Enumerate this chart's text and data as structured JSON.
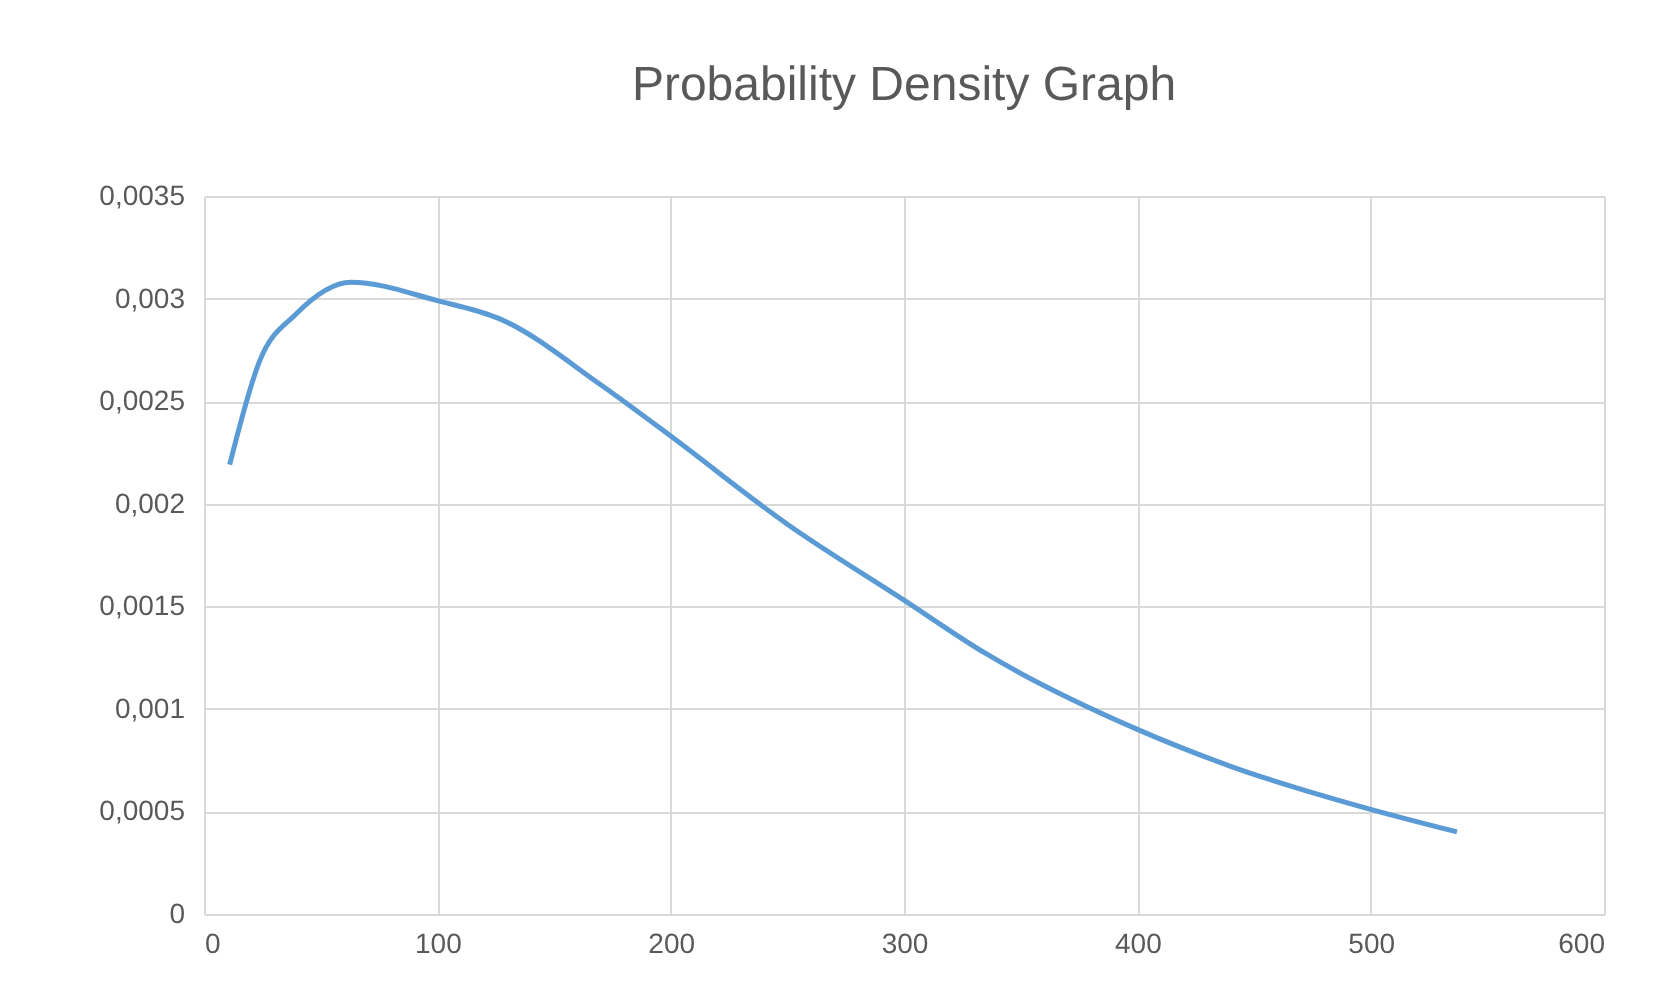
{
  "chart_data": {
    "type": "line",
    "title": "Probability Density Graph",
    "x": [
      11,
      24,
      39,
      63,
      100,
      127,
      170,
      200,
      250,
      300,
      335,
      400,
      440,
      500,
      537
    ],
    "series": [
      {
        "color": "#5b9bd5",
        "values": [
          0.00219,
          0.0027,
          0.00292,
          0.00308,
          0.00299,
          0.0029,
          0.00258,
          0.00233,
          0.0019,
          0.00153,
          0.00127,
          0.0009,
          0.00072,
          0.00051,
          0.0004
        ]
      }
    ],
    "xlim": [
      0,
      600
    ],
    "xticks": [
      0,
      100,
      200,
      300,
      400,
      500,
      600
    ],
    "ylim": [
      0,
      0.0035
    ],
    "yticks": [
      {
        "value": 0,
        "label": "0"
      },
      {
        "value": 0.0005,
        "label": "0,0005"
      },
      {
        "value": 0.001,
        "label": "0,001"
      },
      {
        "value": 0.0015,
        "label": "0,0015"
      },
      {
        "value": 0.002,
        "label": "0,002"
      },
      {
        "value": 0.0025,
        "label": "0,0025"
      },
      {
        "value": 0.003,
        "label": "0,003"
      },
      {
        "value": 0.0035,
        "label": "0,0035"
      }
    ],
    "grid": true,
    "marker": "none",
    "line_style": "solid"
  }
}
